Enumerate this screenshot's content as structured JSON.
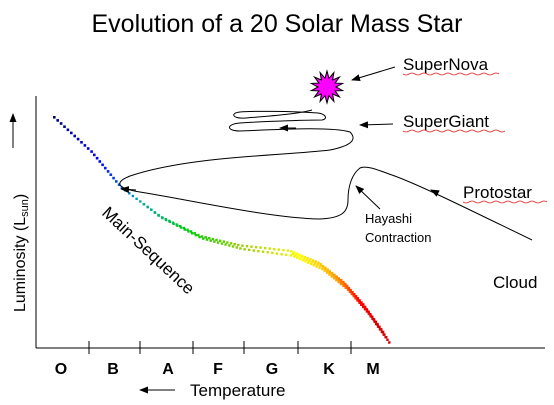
{
  "title": "Evolution of a 20 Solar Mass Star",
  "axes": {
    "y_label_prefix": "Luminosity (L",
    "y_label_sub": "sun",
    "y_label_suffix": ")",
    "x_label": "Temperature",
    "spectral_classes": [
      "O",
      "B",
      "A",
      "F",
      "G",
      "K",
      "M"
    ]
  },
  "labels": {
    "supernova": "SuperNova",
    "supergiant": "SuperGiant",
    "protostar": "Protostar",
    "cloud": "Cloud",
    "hayashi_line1": "Hayashi",
    "hayashi_line2": "Contraction",
    "main_sequence": "Main-Sequence"
  },
  "colors": {
    "supernova": "#ff00ff",
    "main_sequence_gradient": [
      "#000080",
      "#0000ff",
      "#00aaaa",
      "#00cc00",
      "#99cc00",
      "#ffff00",
      "#ffaa00",
      "#ff0000",
      "#cc0000"
    ]
  },
  "icons": {
    "supernova": "spiky-star-icon",
    "arrows": "arrow-icon"
  }
}
